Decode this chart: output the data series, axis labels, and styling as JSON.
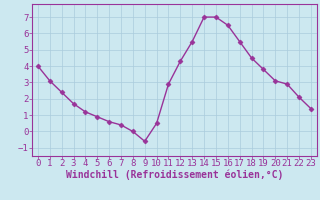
{
  "x": [
    0,
    1,
    2,
    3,
    4,
    5,
    6,
    7,
    8,
    9,
    10,
    11,
    12,
    13,
    14,
    15,
    16,
    17,
    18,
    19,
    20,
    21,
    22,
    23
  ],
  "y": [
    4.0,
    3.1,
    2.4,
    1.7,
    1.2,
    0.9,
    0.6,
    0.4,
    0.0,
    -0.6,
    0.5,
    2.9,
    4.3,
    5.5,
    7.0,
    7.0,
    6.5,
    5.5,
    4.5,
    3.8,
    3.1,
    2.9,
    2.1,
    1.4
  ],
  "line_color": "#993399",
  "marker": "D",
  "marker_size": 2.5,
  "bg_color": "#cce8f0",
  "grid_color": "#aaccdd",
  "xlabel": "Windchill (Refroidissement éolien,°C)",
  "xlabel_color": "#993399",
  "tick_color": "#993399",
  "axis_color": "#993399",
  "ylim": [
    -1.5,
    7.8
  ],
  "xlim": [
    -0.5,
    23.5
  ],
  "yticks": [
    -1,
    0,
    1,
    2,
    3,
    4,
    5,
    6,
    7
  ],
  "xticks": [
    0,
    1,
    2,
    3,
    4,
    5,
    6,
    7,
    8,
    9,
    10,
    11,
    12,
    13,
    14,
    15,
    16,
    17,
    18,
    19,
    20,
    21,
    22,
    23
  ],
  "line_width": 1.0,
  "tick_fontsize": 6.5,
  "xlabel_fontsize": 7.0
}
